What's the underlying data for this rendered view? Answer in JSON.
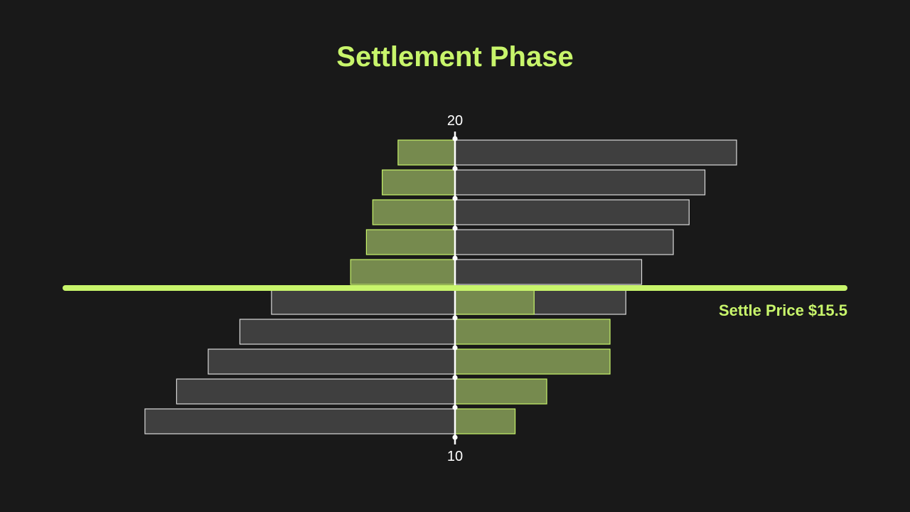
{
  "colors": {
    "background": "#191919",
    "accent": "#c8f56b",
    "gray_bar": "#3f3f3f",
    "gray_outline": "#d9d9d9",
    "green_bar": "#768a4e",
    "axis": "#ffffff"
  },
  "chart_data": {
    "type": "bar",
    "title": "Settlement Phase",
    "orientation": "horizontal-diverging",
    "axis_top_label": "20",
    "axis_bottom_label": "10",
    "xlim": [
      -100,
      100
    ],
    "levels_top_to_bottom": 10,
    "series": [
      {
        "name": "",
        "side": "left",
        "style": "green",
        "values": [
          18,
          23,
          26,
          28,
          33,
          0,
          0,
          0,
          0,
          0
        ]
      },
      {
        "name": "",
        "side": "left",
        "style": "gray",
        "values": [
          0,
          0,
          0,
          0,
          0,
          58,
          68,
          78,
          88,
          98
        ]
      },
      {
        "name": "",
        "side": "right",
        "style": "gray",
        "values": [
          89,
          79,
          74,
          69,
          59,
          54,
          0,
          0,
          0,
          0
        ]
      },
      {
        "name": "",
        "side": "right",
        "style": "green",
        "values": [
          0,
          0,
          0,
          0,
          0,
          25,
          49,
          49,
          29,
          19
        ]
      }
    ],
    "settle_line": {
      "label": "Settle Price $15.5",
      "position_between_levels": [
        5,
        6
      ]
    }
  }
}
